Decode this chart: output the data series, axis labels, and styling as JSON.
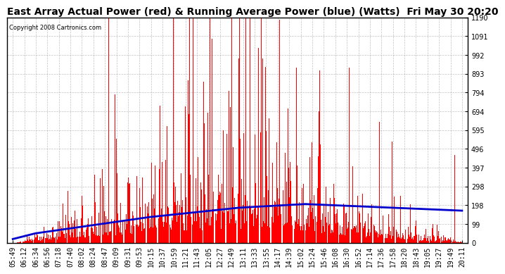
{
  "title": "East Array Actual Power (red) & Running Average Power (blue) (Watts)  Fri May 30 20:20",
  "copyright": "Copyright 2008 Cartronics.com",
  "ylim": [
    0.0,
    1190.5
  ],
  "yticks": [
    0.0,
    99.2,
    198.4,
    297.6,
    396.8,
    496.0,
    595.2,
    694.4,
    793.6,
    892.8,
    992.1,
    1091.3,
    1190.5
  ],
  "xtick_labels": [
    "05:49",
    "06:12",
    "06:34",
    "06:56",
    "07:18",
    "07:40",
    "08:02",
    "08:24",
    "08:47",
    "09:09",
    "09:31",
    "09:53",
    "10:15",
    "10:37",
    "10:59",
    "11:21",
    "11:43",
    "12:05",
    "12:27",
    "12:49",
    "13:11",
    "13:33",
    "13:55",
    "14:17",
    "14:39",
    "15:02",
    "15:24",
    "15:46",
    "16:08",
    "16:30",
    "16:52",
    "17:14",
    "17:36",
    "17:58",
    "18:20",
    "18:43",
    "19:05",
    "19:27",
    "19:49",
    "20:11"
  ],
  "bar_color": "#ff0000",
  "line_color": "#0000cc",
  "background_color": "#ffffff",
  "grid_color": "#999999",
  "title_fontsize": 10,
  "tick_fontsize": 7
}
